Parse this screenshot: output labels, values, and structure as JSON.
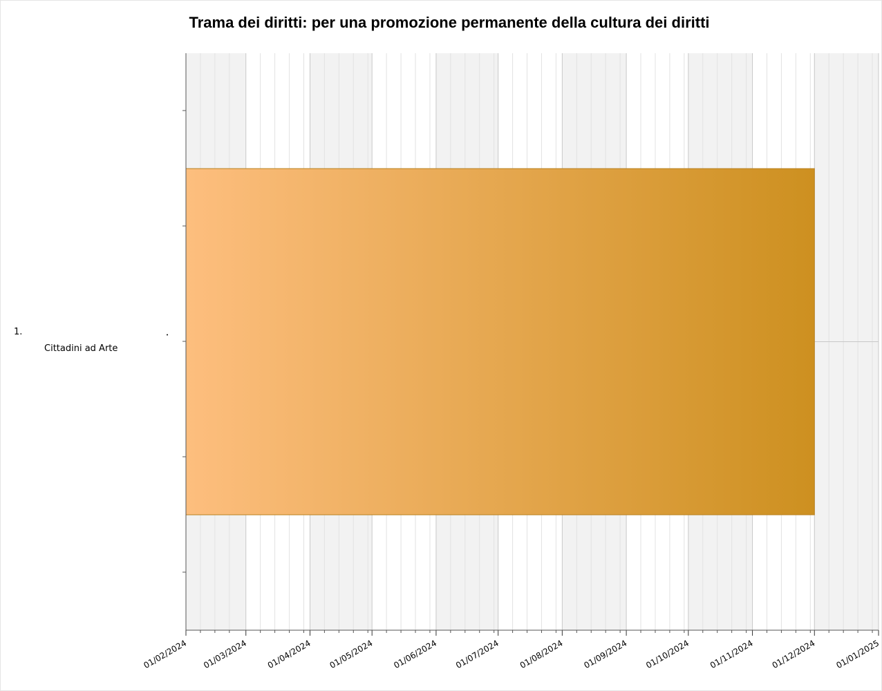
{
  "chart_data": {
    "type": "gantt",
    "title": "Trama dei diritti: per una promozione permanente della cultura dei diritti",
    "tasks": [
      {
        "number": "1.",
        "name": "Cittadini ad Arte",
        "start": "2024-02-01",
        "end": "2024-12-01"
      }
    ],
    "xlim": [
      "2024-02-01",
      "2025-01-01"
    ],
    "xticks": [
      {
        "value": "2024-02-01",
        "label": "01/02/2024"
      },
      {
        "value": "2024-03-01",
        "label": "01/03/2024"
      },
      {
        "value": "2024-04-01",
        "label": "01/04/2024"
      },
      {
        "value": "2024-05-01",
        "label": "01/05/2024"
      },
      {
        "value": "2024-06-01",
        "label": "01/06/2024"
      },
      {
        "value": "2024-07-01",
        "label": "01/07/2024"
      },
      {
        "value": "2024-08-01",
        "label": "01/08/2024"
      },
      {
        "value": "2024-09-01",
        "label": "01/09/2024"
      },
      {
        "value": "2024-10-01",
        "label": "01/10/2024"
      },
      {
        "value": "2024-11-01",
        "label": "01/11/2024"
      },
      {
        "value": "2024-12-01",
        "label": "01/12/2024"
      },
      {
        "value": "2025-01-01",
        "label": "01/01/2025"
      }
    ],
    "grid": true,
    "band_color": "#f2f2f2",
    "bar_gradient": [
      "#fdbe7e",
      "#cd9020"
    ],
    "bar_border": "#b8801e",
    "title_color": "#c8400a"
  }
}
